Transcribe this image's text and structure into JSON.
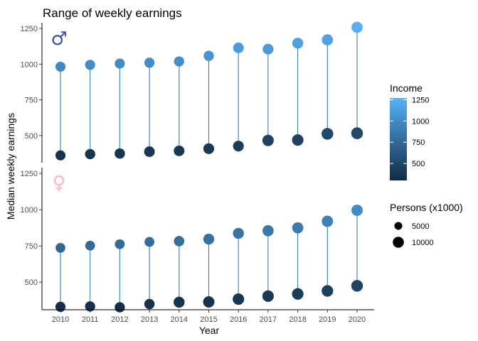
{
  "chart_data": {
    "type": "scatter",
    "title": "Range of weekly earnings",
    "xlabel": "Year",
    "ylabel": "Median weekly earnings",
    "x": [
      2010,
      2011,
      2012,
      2013,
      2014,
      2015,
      2016,
      2017,
      2018,
      2019,
      2020
    ],
    "grid": false,
    "panels": [
      {
        "symbol": "♂",
        "symbol_color": "#3b4cc0",
        "ylim": [
          310,
          1290
        ],
        "yticks": [
          500,
          750,
          1000,
          1250
        ],
        "high": {
          "income": [
            982,
            995,
            1004,
            1010,
            1019,
            1058,
            1114,
            1105,
            1147,
            1170,
            1258
          ],
          "persons": [
            8200,
            8300,
            8300,
            8400,
            8400,
            8600,
            9200,
            9400,
            9700,
            10100,
            10100
          ]
        },
        "low": {
          "income": [
            361,
            370,
            374,
            387,
            393,
            408,
            426,
            466,
            469,
            512,
            516
          ],
          "persons": [
            8200,
            8600,
            8700,
            9200,
            9200,
            9500,
            9500,
            10600,
            10700,
            11200,
            11300
          ]
        }
      },
      {
        "symbol": "♀",
        "symbol_color": "#ffb6c1",
        "ylim": [
          310,
          1290
        ],
        "yticks": [
          500,
          750,
          1000,
          1250
        ],
        "high": {
          "income": [
            737,
            752,
            762,
            778,
            783,
            797,
            837,
            855,
            875,
            920,
            996
          ],
          "persons": [
            7700,
            7800,
            7800,
            7900,
            8800,
            9700,
            9800,
            10100,
            10100,
            10400,
            10400
          ]
        },
        "low": {
          "income": [
            330,
            333,
            327,
            349,
            362,
            364,
            383,
            404,
            419,
            440,
            475
          ],
          "persons": [
            8300,
            8400,
            8500,
            8700,
            9800,
            10500,
            10700,
            10700,
            10800,
            10800,
            11000
          ]
        }
      }
    ],
    "legend": {
      "position": "right",
      "color": {
        "title": "Income",
        "ticks": [
          500,
          750,
          1000,
          1250
        ],
        "range": [
          300,
          1270
        ],
        "low_color": "#132b43",
        "high_color": "#56b1f7"
      },
      "size": {
        "title": "Persons (x1000)",
        "entries": [
          {
            "label": "5000",
            "value": 5000
          },
          {
            "label": "10000",
            "value": 10000
          }
        ]
      }
    }
  }
}
